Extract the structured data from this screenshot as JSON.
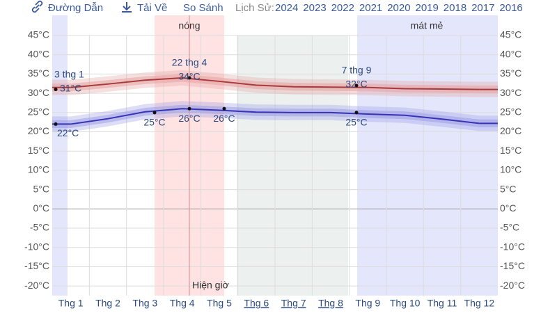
{
  "toolbar": {
    "links": [
      "Đường Dẫn",
      "Tải Về",
      "So Sánh"
    ],
    "history_label": "Lịch Sử:",
    "years": [
      "2024",
      "2023",
      "2022",
      "2021",
      "2020",
      "2019",
      "2018",
      "2017",
      "2016"
    ]
  },
  "chart_data": {
    "type": "line",
    "categories": [
      "Thg 1",
      "Thg 2",
      "Thg 3",
      "Thg 4",
      "Thg 5",
      "Thg 6",
      "Thg 7",
      "Thg 8",
      "Thg 9",
      "Thg 10",
      "Thg 11",
      "Thg 12"
    ],
    "series": [
      {
        "color": "#a83a3a",
        "band_color": "#e6a3a3",
        "values": [
          31.5,
          32.4,
          33.4,
          34,
          33.1,
          32.1,
          31.7,
          31.6,
          31.5,
          31.2,
          31.1,
          31
        ]
      },
      {
        "color": "#3434b4",
        "band_color": "#9e9ee6",
        "values": [
          22,
          23.4,
          25.2,
          26,
          25.6,
          25.1,
          25,
          25,
          24.6,
          24.3,
          23.3,
          22.2
        ]
      }
    ],
    "ylim": [
      -22.5,
      45
    ],
    "yticks": [
      {
        "value": 45,
        "label": "45°C"
      },
      {
        "value": 40,
        "label": "40°C"
      },
      {
        "value": 35,
        "label": "35°C"
      },
      {
        "value": 30,
        "label": "30°C"
      },
      {
        "value": 25,
        "label": "25°C"
      },
      {
        "value": 20,
        "label": "20°C"
      },
      {
        "value": 15,
        "label": "15°C"
      },
      {
        "value": 10,
        "label": "10°C"
      },
      {
        "value": 5,
        "label": "5°C"
      },
      {
        "value": 0,
        "label": "0°C"
      },
      {
        "value": -5,
        "label": "-5°C"
      },
      {
        "value": -10,
        "label": "-10°C"
      },
      {
        "value": -15,
        "label": "-15°C"
      },
      {
        "value": -20,
        "label": "-20°C"
      }
    ],
    "grid": true,
    "seasons": [
      {
        "label": "nóng",
        "color": "#ffd6d6"
      },
      {
        "label": "mát mẻ",
        "color": "#dde0fb"
      }
    ],
    "now_label": "Hiện giờ",
    "high_annotations": [
      {
        "date": "3 thg 1",
        "value": 31,
        "label": "31°C"
      },
      {
        "date": "22 thg 4",
        "value": 34,
        "label": "34°C"
      },
      {
        "date": "7 thg 9",
        "value": 32,
        "label": "32°C"
      }
    ],
    "low_annotations": [
      {
        "value": 22,
        "label": "22°C"
      },
      {
        "value": 25,
        "label": "25°C"
      },
      {
        "value": 26,
        "label": "26°C"
      },
      {
        "value": 26,
        "label": "26°C"
      },
      {
        "value": 25,
        "label": "25°C"
      }
    ]
  }
}
